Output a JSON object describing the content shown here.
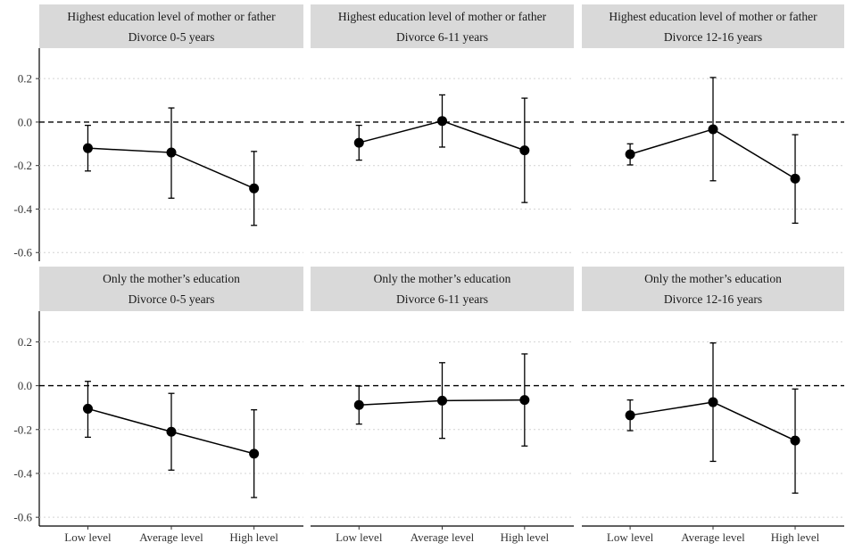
{
  "chart_data": {
    "type": "line",
    "layout": "facet-grid-2x3",
    "categories": [
      "Low level",
      "Average level",
      "High level"
    ],
    "yticks": [
      "0.2",
      "0.0",
      "-0.2",
      "-0.4",
      "-0.6"
    ],
    "ytick_values": [
      0.2,
      0.0,
      -0.2,
      -0.4,
      -0.6
    ],
    "ylim": [
      -0.64,
      0.34
    ],
    "reference_line": 0,
    "reference_line_style": "dashed",
    "grid": "horizontal dotted major gridlines",
    "point_color": "#000000",
    "strip_color": "#d9d9d9",
    "panels": [
      {
        "row": 0,
        "col": 0,
        "strip_line1": "Highest education level of mother or father",
        "strip_line2": "Divorce 0-5 years",
        "values": [
          -0.12,
          -0.14,
          -0.305
        ],
        "lower": [
          -0.225,
          -0.35,
          -0.475
        ],
        "upper": [
          -0.015,
          0.065,
          -0.135
        ]
      },
      {
        "row": 0,
        "col": 1,
        "strip_line1": "Highest education level of mother or father",
        "strip_line2": "Divorce 6-11 years",
        "values": [
          -0.095,
          0.005,
          -0.13
        ],
        "lower": [
          -0.175,
          -0.115,
          -0.37
        ],
        "upper": [
          -0.015,
          0.125,
          0.11
        ]
      },
      {
        "row": 0,
        "col": 2,
        "strip_line1": "Highest education level of mother or father",
        "strip_line2": "Divorce 12-16 years",
        "values": [
          -0.148,
          -0.033,
          -0.26
        ],
        "lower": [
          -0.197,
          -0.27,
          -0.465
        ],
        "upper": [
          -0.1,
          0.205,
          -0.058
        ]
      },
      {
        "row": 1,
        "col": 0,
        "strip_line1": "Only the mother’s education",
        "strip_line2": "Divorce 0-5 years",
        "values": [
          -0.105,
          -0.21,
          -0.31
        ],
        "lower": [
          -0.235,
          -0.385,
          -0.51
        ],
        "upper": [
          0.02,
          -0.035,
          -0.11
        ]
      },
      {
        "row": 1,
        "col": 1,
        "strip_line1": "Only the mother’s education",
        "strip_line2": "Divorce 6-11 years",
        "values": [
          -0.088,
          -0.068,
          -0.065
        ],
        "lower": [
          -0.175,
          -0.24,
          -0.275
        ],
        "upper": [
          -0.002,
          0.105,
          0.145
        ]
      },
      {
        "row": 1,
        "col": 2,
        "strip_line1": "Only the mother’s education",
        "strip_line2": "Divorce 12-16 years",
        "values": [
          -0.135,
          -0.075,
          -0.25
        ],
        "lower": [
          -0.205,
          -0.345,
          -0.49
        ],
        "upper": [
          -0.065,
          0.195,
          -0.015
        ]
      }
    ]
  }
}
